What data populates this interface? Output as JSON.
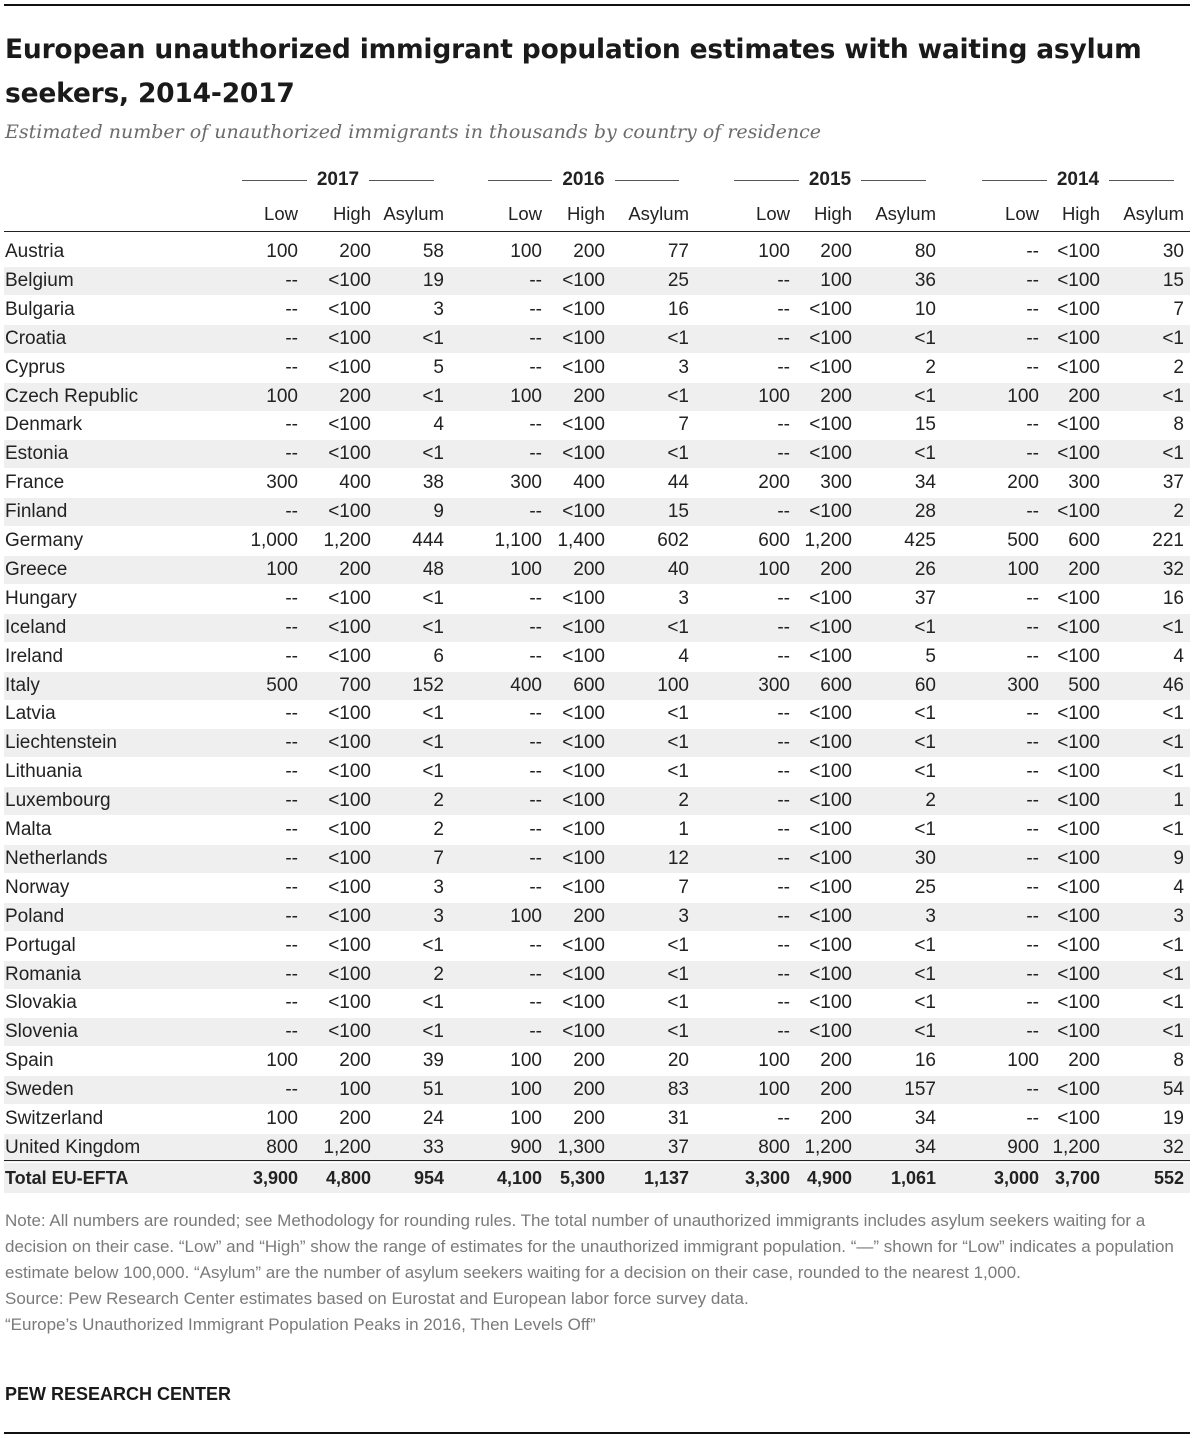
{
  "title": "European unauthorized immigrant population estimates with waiting asylum seekers, 2014-2017",
  "subtitle": "Estimated number of unauthorized immigrants in thousands by country of residence",
  "chart_data": {
    "type": "table",
    "years": [
      "2017",
      "2016",
      "2015",
      "2014"
    ],
    "subheaders": [
      "Low",
      "High",
      "Asylum"
    ],
    "rows": [
      {
        "country": "Austria",
        "values": [
          "100",
          "200",
          "58",
          "100",
          "200",
          "77",
          "100",
          "200",
          "80",
          "--",
          "<100",
          "30"
        ]
      },
      {
        "country": "Belgium",
        "values": [
          "--",
          "<100",
          "19",
          "--",
          "<100",
          "25",
          "--",
          "100",
          "36",
          "--",
          "<100",
          "15"
        ]
      },
      {
        "country": "Bulgaria",
        "values": [
          "--",
          "<100",
          "3",
          "--",
          "<100",
          "16",
          "--",
          "<100",
          "10",
          "--",
          "<100",
          "7"
        ]
      },
      {
        "country": "Croatia",
        "values": [
          "--",
          "<100",
          "<1",
          "--",
          "<100",
          "<1",
          "--",
          "<100",
          "<1",
          "--",
          "<100",
          "<1"
        ]
      },
      {
        "country": "Cyprus",
        "values": [
          "--",
          "<100",
          "5",
          "--",
          "<100",
          "3",
          "--",
          "<100",
          "2",
          "--",
          "<100",
          "2"
        ]
      },
      {
        "country": "Czech Republic",
        "values": [
          "100",
          "200",
          "<1",
          "100",
          "200",
          "<1",
          "100",
          "200",
          "<1",
          "100",
          "200",
          "<1"
        ]
      },
      {
        "country": "Denmark",
        "values": [
          "--",
          "<100",
          "4",
          "--",
          "<100",
          "7",
          "--",
          "<100",
          "15",
          "--",
          "<100",
          "8"
        ]
      },
      {
        "country": "Estonia",
        "values": [
          "--",
          "<100",
          "<1",
          "--",
          "<100",
          "<1",
          "--",
          "<100",
          "<1",
          "--",
          "<100",
          "<1"
        ]
      },
      {
        "country": "France",
        "values": [
          "300",
          "400",
          "38",
          "300",
          "400",
          "44",
          "200",
          "300",
          "34",
          "200",
          "300",
          "37"
        ]
      },
      {
        "country": "Finland",
        "values": [
          "--",
          "<100",
          "9",
          "--",
          "<100",
          "15",
          "--",
          "<100",
          "28",
          "--",
          "<100",
          "2"
        ]
      },
      {
        "country": "Germany",
        "values": [
          "1,000",
          "1,200",
          "444",
          "1,100",
          "1,400",
          "602",
          "600",
          "1,200",
          "425",
          "500",
          "600",
          "221"
        ]
      },
      {
        "country": "Greece",
        "values": [
          "100",
          "200",
          "48",
          "100",
          "200",
          "40",
          "100",
          "200",
          "26",
          "100",
          "200",
          "32"
        ]
      },
      {
        "country": "Hungary",
        "values": [
          "--",
          "<100",
          "<1",
          "--",
          "<100",
          "3",
          "--",
          "<100",
          "37",
          "--",
          "<100",
          "16"
        ]
      },
      {
        "country": "Iceland",
        "values": [
          "--",
          "<100",
          "<1",
          "--",
          "<100",
          "<1",
          "--",
          "<100",
          "<1",
          "--",
          "<100",
          "<1"
        ]
      },
      {
        "country": "Ireland",
        "values": [
          "--",
          "<100",
          "6",
          "--",
          "<100",
          "4",
          "--",
          "<100",
          "5",
          "--",
          "<100",
          "4"
        ]
      },
      {
        "country": "Italy",
        "values": [
          "500",
          "700",
          "152",
          "400",
          "600",
          "100",
          "300",
          "600",
          "60",
          "300",
          "500",
          "46"
        ]
      },
      {
        "country": "Latvia",
        "values": [
          "--",
          "<100",
          "<1",
          "--",
          "<100",
          "<1",
          "--",
          "<100",
          "<1",
          "--",
          "<100",
          "<1"
        ]
      },
      {
        "country": "Liechtenstein",
        "values": [
          "--",
          "<100",
          "<1",
          "--",
          "<100",
          "<1",
          "--",
          "<100",
          "<1",
          "--",
          "<100",
          "<1"
        ]
      },
      {
        "country": "Lithuania",
        "values": [
          "--",
          "<100",
          "<1",
          "--",
          "<100",
          "<1",
          "--",
          "<100",
          "<1",
          "--",
          "<100",
          "<1"
        ]
      },
      {
        "country": "Luxembourg",
        "values": [
          "--",
          "<100",
          "2",
          "--",
          "<100",
          "2",
          "--",
          "<100",
          "2",
          "--",
          "<100",
          "1"
        ]
      },
      {
        "country": "Malta",
        "values": [
          "--",
          "<100",
          "2",
          "--",
          "<100",
          "1",
          "--",
          "<100",
          "<1",
          "--",
          "<100",
          "<1"
        ]
      },
      {
        "country": "Netherlands",
        "values": [
          "--",
          "<100",
          "7",
          "--",
          "<100",
          "12",
          "--",
          "<100",
          "30",
          "--",
          "<100",
          "9"
        ]
      },
      {
        "country": "Norway",
        "values": [
          "--",
          "<100",
          "3",
          "--",
          "<100",
          "7",
          "--",
          "<100",
          "25",
          "--",
          "<100",
          "4"
        ]
      },
      {
        "country": "Poland",
        "values": [
          "--",
          "<100",
          "3",
          "100",
          "200",
          "3",
          "--",
          "<100",
          "3",
          "--",
          "<100",
          "3"
        ]
      },
      {
        "country": "Portugal",
        "values": [
          "--",
          "<100",
          "<1",
          "--",
          "<100",
          "<1",
          "--",
          "<100",
          "<1",
          "--",
          "<100",
          "<1"
        ]
      },
      {
        "country": "Romania",
        "values": [
          "--",
          "<100",
          "2",
          "--",
          "<100",
          "<1",
          "--",
          "<100",
          "<1",
          "--",
          "<100",
          "<1"
        ]
      },
      {
        "country": "Slovakia",
        "values": [
          "--",
          "<100",
          "<1",
          "--",
          "<100",
          "<1",
          "--",
          "<100",
          "<1",
          "--",
          "<100",
          "<1"
        ]
      },
      {
        "country": "Slovenia",
        "values": [
          "--",
          "<100",
          "<1",
          "--",
          "<100",
          "<1",
          "--",
          "<100",
          "<1",
          "--",
          "<100",
          "<1"
        ]
      },
      {
        "country": "Spain",
        "values": [
          "100",
          "200",
          "39",
          "100",
          "200",
          "20",
          "100",
          "200",
          "16",
          "100",
          "200",
          "8"
        ]
      },
      {
        "country": "Sweden",
        "values": [
          "--",
          "100",
          "51",
          "100",
          "200",
          "83",
          "100",
          "200",
          "157",
          "--",
          "<100",
          "54"
        ]
      },
      {
        "country": "Switzerland",
        "values": [
          "100",
          "200",
          "24",
          "100",
          "200",
          "31",
          "--",
          "200",
          "34",
          "--",
          "<100",
          "19"
        ]
      },
      {
        "country": "United Kingdom",
        "values": [
          "800",
          "1,200",
          "33",
          "900",
          "1,300",
          "37",
          "800",
          "1,200",
          "34",
          "900",
          "1,200",
          "32"
        ]
      }
    ],
    "total": {
      "country": "Total EU-EFTA",
      "values": [
        "3,900",
        "4,800",
        "954",
        "4,100",
        "5,300",
        "1,137",
        "3,300",
        "4,900",
        "1,061",
        "3,000",
        "3,700",
        "552"
      ]
    }
  },
  "footer": {
    "note": "Note: All numbers are rounded; see Methodology for rounding rules. The total number of unauthorized immigrants includes asylum seekers waiting for a decision on their case. “Low” and “High” show the range of estimates for the unauthorized immigrant population. “—” shown for “Low” indicates a population estimate below 100,000. “Asylum” are the number of asylum seekers waiting for a decision on their case, rounded to the nearest 1,000.",
    "source": "Source: Pew Research Center estimates based on Eurostat and European labor force survey data.",
    "report": "“Europe’s Unauthorized Immigrant Population Peaks in 2016, Then Levels Off”",
    "brand": "PEW RESEARCH CENTER"
  }
}
